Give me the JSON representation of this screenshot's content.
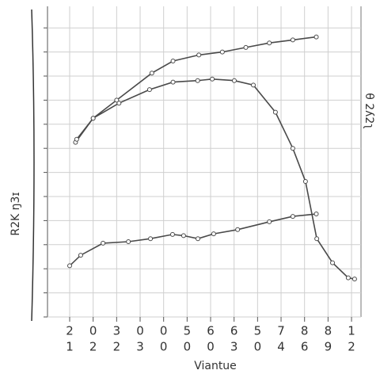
{
  "chart_data": {
    "type": "line",
    "x_label": "Viantue",
    "y_label": "R2K ŋ3ɪ",
    "y2_label": "θ 2ʎ2ʅ",
    "xlim": [
      0,
      12.3
    ],
    "ylim": [
      0,
      100
    ],
    "xticks": [
      {
        "value": 0,
        "label": [
          "2",
          "1"
        ]
      },
      {
        "value": 1,
        "label": [
          "0",
          "2"
        ]
      },
      {
        "value": 2,
        "label": [
          "3",
          "2"
        ]
      },
      {
        "value": 3,
        "label": [
          "0",
          "3"
        ]
      },
      {
        "value": 4,
        "label": [
          "0",
          "0"
        ]
      },
      {
        "value": 5,
        "label": [
          "5",
          "0"
        ]
      },
      {
        "value": 6,
        "label": [
          "6",
          "0"
        ]
      },
      {
        "value": 7,
        "label": [
          "6",
          "3"
        ]
      },
      {
        "value": 8,
        "label": [
          "5",
          "0"
        ]
      },
      {
        "value": 9,
        "label": [
          "7",
          "4"
        ]
      },
      {
        "value": 10,
        "label": [
          "8",
          "6"
        ]
      },
      {
        "value": 11,
        "label": [
          "8",
          "9"
        ]
      },
      {
        "value": 12,
        "label": [
          "1",
          "2"
        ]
      }
    ],
    "yticks": [
      0,
      8,
      16,
      24,
      32,
      40,
      48,
      56,
      64,
      72,
      80,
      88,
      96
    ],
    "grid": true,
    "series": [
      {
        "color": "#4a4a4a",
        "x": [
          0.25,
          1,
          2,
          3.5,
          4.4,
          5.5,
          6.5,
          7.5,
          8.5,
          9.5,
          10.5
        ],
        "values": [
          58,
          66,
          72,
          81,
          85,
          87,
          88,
          89.5,
          91,
          92,
          93
        ]
      },
      {
        "color": "#4a4a4a",
        "x": [
          0.3,
          1,
          2.1,
          3.4,
          4.4,
          5.45,
          6.07,
          7.01,
          7.82,
          8.76,
          9.5,
          10.04,
          10.52,
          11.19,
          11.86,
          12.13
        ],
        "values": [
          59,
          66,
          71,
          75.5,
          78,
          78.5,
          79,
          78.5,
          77,
          68,
          56,
          45,
          26,
          18,
          13,
          12.6
        ]
      },
      {
        "color": "#4a4a4a",
        "x": [
          0,
          0.47,
          1.42,
          2.5,
          3.44,
          4.38,
          4.85,
          5.46,
          6.13,
          7.15,
          8.5,
          9.5,
          10.5
        ],
        "values": [
          17,
          20.5,
          24.5,
          25,
          26,
          27.4,
          27,
          26,
          27.6,
          29,
          31.6,
          33.4,
          34.2
        ]
      }
    ]
  }
}
